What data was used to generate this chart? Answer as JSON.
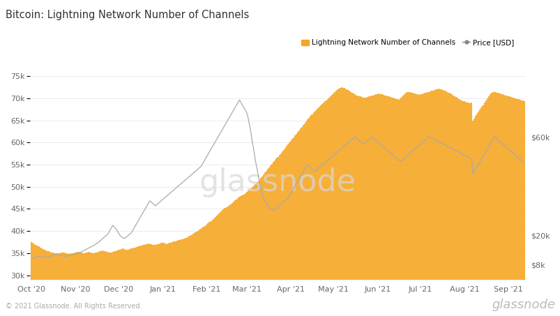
{
  "title": "Bitcoin: Lightning Network Number of Channels",
  "background_color": "#ffffff",
  "bar_color": "#f5a623",
  "line_color": "#aaaaaa",
  "left_yticks": [
    30000,
    35000,
    40000,
    45000,
    50000,
    55000,
    60000,
    65000,
    70000,
    75000
  ],
  "left_ytick_labels": [
    "30k",
    "35k",
    "40k",
    "45k",
    "50k",
    "55k",
    "60k",
    "65k",
    "70k",
    "75k"
  ],
  "right_yticks": [
    8000,
    20000,
    60000
  ],
  "right_ytick_labels": [
    "$8k",
    "$20k",
    "$60k"
  ],
  "ylim_left": [
    29000,
    78000
  ],
  "ylim_right": [
    2000,
    90000
  ],
  "xtick_labels": [
    "Oct '20",
    "Nov '20",
    "Dec '20",
    "Jan '21",
    "Feb '21",
    "Mar '21",
    "Apr '21",
    "May '21",
    "Jun '21",
    "Jul '21",
    "Aug '21",
    "Sep '21"
  ],
  "month_positions": [
    0,
    31,
    61,
    92,
    123,
    151,
    182,
    212,
    243,
    273,
    304,
    335
  ],
  "watermark": "glassnode",
  "footer_left": "© 2021 Glassnode. All Rights Reserved.",
  "footer_right": "glassnode",
  "legend_entries": [
    "Lightning Network Number of Channels",
    "Price [USD]"
  ],
  "channels_data": [
    37500,
    37300,
    37100,
    36900,
    36700,
    36500,
    36300,
    36100,
    35900,
    35700,
    35600,
    35500,
    35400,
    35300,
    35200,
    35100,
    35050,
    35000,
    34950,
    34900,
    35000,
    35100,
    35200,
    35100,
    35000,
    34900,
    34800,
    34850,
    34900,
    35000,
    35100,
    35200,
    35300,
    35300,
    35200,
    35100,
    35050,
    35000,
    35100,
    35200,
    35300,
    35200,
    35100,
    35050,
    35000,
    35100,
    35200,
    35300,
    35400,
    35500,
    35600,
    35500,
    35400,
    35300,
    35200,
    35100,
    35200,
    35300,
    35400,
    35500,
    35600,
    35700,
    35800,
    35900,
    36000,
    35900,
    35800,
    35700,
    35800,
    35900,
    36000,
    36100,
    36200,
    36300,
    36400,
    36500,
    36600,
    36700,
    36800,
    36900,
    37000,
    37100,
    37200,
    37100,
    37000,
    36900,
    36800,
    36900,
    37000,
    37100,
    37200,
    37300,
    37400,
    37300,
    37200,
    37100,
    37200,
    37300,
    37400,
    37500,
    37600,
    37700,
    37800,
    37900,
    38000,
    38100,
    38200,
    38300,
    38400,
    38500,
    38700,
    38900,
    39100,
    39300,
    39500,
    39700,
    39900,
    40100,
    40300,
    40500,
    40800,
    41000,
    41200,
    41500,
    41800,
    42000,
    42300,
    42600,
    42900,
    43200,
    43500,
    43800,
    44100,
    44400,
    44700,
    45000,
    45200,
    45400,
    45600,
    45800,
    46000,
    46300,
    46600,
    46900,
    47200,
    47500,
    47700,
    47900,
    48100,
    48300,
    48500,
    48800,
    49100,
    49400,
    49700,
    50000,
    50300,
    50600,
    50900,
    51200,
    51600,
    52000,
    52400,
    52800,
    53200,
    53600,
    54000,
    54400,
    54800,
    55200,
    55600,
    56000,
    56400,
    56800,
    57200,
    57600,
    58000,
    58400,
    58800,
    59200,
    59600,
    60000,
    60400,
    60800,
    61200,
    61600,
    62000,
    62400,
    62800,
    63200,
    63600,
    64000,
    64400,
    64800,
    65200,
    65600,
    66000,
    66400,
    66800,
    67200,
    67500,
    67800,
    68100,
    68400,
    68700,
    69000,
    69300,
    69600,
    69900,
    70200,
    70500,
    70800,
    71100,
    71400,
    71700,
    72000,
    72200,
    72400,
    72500,
    72400,
    72300,
    72100,
    71900,
    71700,
    71500,
    71300,
    71100,
    70900,
    70700,
    70600,
    70500,
    70400,
    70300,
    70200,
    70100,
    70200,
    70300,
    70400,
    70500,
    70600,
    70700,
    70800,
    70900,
    71000,
    71100,
    71000,
    70900,
    70800,
    70700,
    70600,
    70500,
    70400,
    70300,
    70200,
    70100,
    70000,
    69900,
    69800,
    69700,
    70000,
    70300,
    70600,
    70900,
    71200,
    71400,
    71500,
    71400,
    71300,
    71200,
    71100,
    71000,
    70900,
    70800,
    70900,
    71000,
    71100,
    71200,
    71300,
    71400,
    71500,
    71600,
    71700,
    71800,
    71900,
    72000,
    72100,
    72200,
    72100,
    72000,
    71900,
    71800,
    71700,
    71500,
    71300,
    71100,
    70900,
    70700,
    70500,
    70300,
    70100,
    69900,
    69700,
    69500,
    69400,
    69300,
    69200,
    69100,
    69000,
    68900,
    69000,
    65000,
    65500,
    66000,
    66500,
    67000,
    67500,
    68000,
    68500,
    69000,
    69500,
    70000,
    70500,
    71000,
    71200,
    71400,
    71500,
    71400,
    71300,
    71200,
    71100,
    71000,
    70900,
    70800,
    70700,
    70600,
    70500,
    70400,
    70300,
    70200,
    70100,
    70000,
    69900,
    69800,
    69700,
    69600,
    69500,
    69400
  ],
  "price_data": [
    10500,
    10700,
    10900,
    11100,
    11300,
    11500,
    11400,
    11300,
    11200,
    11100,
    11000,
    11100,
    11200,
    11400,
    11600,
    11800,
    12000,
    12200,
    12100,
    12000,
    11900,
    11800,
    11700,
    11600,
    11500,
    11600,
    11700,
    11800,
    11900,
    12000,
    12100,
    12300,
    12500,
    12700,
    13000,
    13300,
    13600,
    13900,
    14200,
    14500,
    14800,
    15100,
    15400,
    15700,
    16000,
    16400,
    16800,
    17200,
    17700,
    18200,
    18700,
    19200,
    19700,
    20200,
    21000,
    22000,
    23000,
    24000,
    23500,
    22800,
    22000,
    21000,
    20000,
    19500,
    19000,
    18800,
    19000,
    19500,
    20000,
    20500,
    21000,
    22000,
    23000,
    24000,
    25000,
    26000,
    27000,
    28000,
    29000,
    30000,
    31000,
    32000,
    33000,
    34000,
    33500,
    33000,
    32500,
    32000,
    32500,
    33000,
    33500,
    34000,
    34500,
    35000,
    35500,
    36000,
    36500,
    37000,
    37500,
    38000,
    38500,
    39000,
    39500,
    40000,
    40500,
    41000,
    41500,
    42000,
    42500,
    43000,
    43500,
    44000,
    44500,
    45000,
    45500,
    46000,
    46500,
    47000,
    47500,
    48000,
    49000,
    50000,
    51000,
    52000,
    53000,
    54000,
    55000,
    56000,
    57000,
    58000,
    59000,
    60000,
    61000,
    62000,
    63000,
    64000,
    65000,
    66000,
    67000,
    68000,
    69000,
    70000,
    71000,
    72000,
    73000,
    74000,
    75000,
    74000,
    73000,
    72000,
    71000,
    70000,
    68000,
    65000,
    62000,
    58000,
    55000,
    51000,
    48000,
    45000,
    42000,
    39000,
    37000,
    35000,
    34000,
    33000,
    32000,
    31500,
    31000,
    30500,
    30000,
    30500,
    31000,
    31500,
    32000,
    32500,
    33000,
    33500,
    34000,
    34500,
    35000,
    36000,
    37000,
    38000,
    39000,
    40000,
    41000,
    42000,
    43000,
    44000,
    45000,
    46000,
    47000,
    48000,
    48500,
    48000,
    47500,
    47000,
    46500,
    46000,
    46500,
    47000,
    47500,
    48000,
    48500,
    49000,
    49500,
    50000,
    50500,
    51000,
    51500,
    52000,
    52500,
    53000,
    53500,
    54000,
    54500,
    55000,
    55500,
    56000,
    56500,
    57000,
    57500,
    58000,
    58500,
    59000,
    59500,
    60000,
    59500,
    59000,
    58500,
    58000,
    57500,
    57000,
    57500,
    58000,
    58500,
    59000,
    59500,
    60000,
    59500,
    59000,
    58500,
    58000,
    57500,
    57000,
    56500,
    56000,
    55500,
    55000,
    54500,
    54000,
    53500,
    53000,
    52500,
    52000,
    51500,
    51000,
    50500,
    50000,
    50500,
    51000,
    51500,
    52000,
    52500,
    53000,
    53500,
    54000,
    54500,
    55000,
    55500,
    56000,
    56500,
    57000,
    57500,
    58000,
    58500,
    59000,
    59500,
    60000,
    59800,
    59500,
    59200,
    58900,
    58600,
    58300,
    58000,
    57700,
    57400,
    57100,
    56800,
    56500,
    56200,
    55900,
    55600,
    55300,
    55000,
    54700,
    54400,
    54100,
    53800,
    53500,
    53200,
    52900,
    52600,
    52300,
    52000,
    51700,
    51400,
    51100,
    45000,
    46000,
    47000,
    48000,
    49000,
    50000,
    51000,
    52000,
    53000,
    54000,
    55000,
    56000,
    57000,
    58000,
    59000,
    60000,
    59500,
    59000,
    58500,
    58000,
    57500,
    57000,
    56500,
    56000,
    55500,
    55000,
    54500,
    54000,
    53500,
    53000,
    52500,
    52000,
    51500,
    51000,
    50500,
    50000,
    49500
  ]
}
